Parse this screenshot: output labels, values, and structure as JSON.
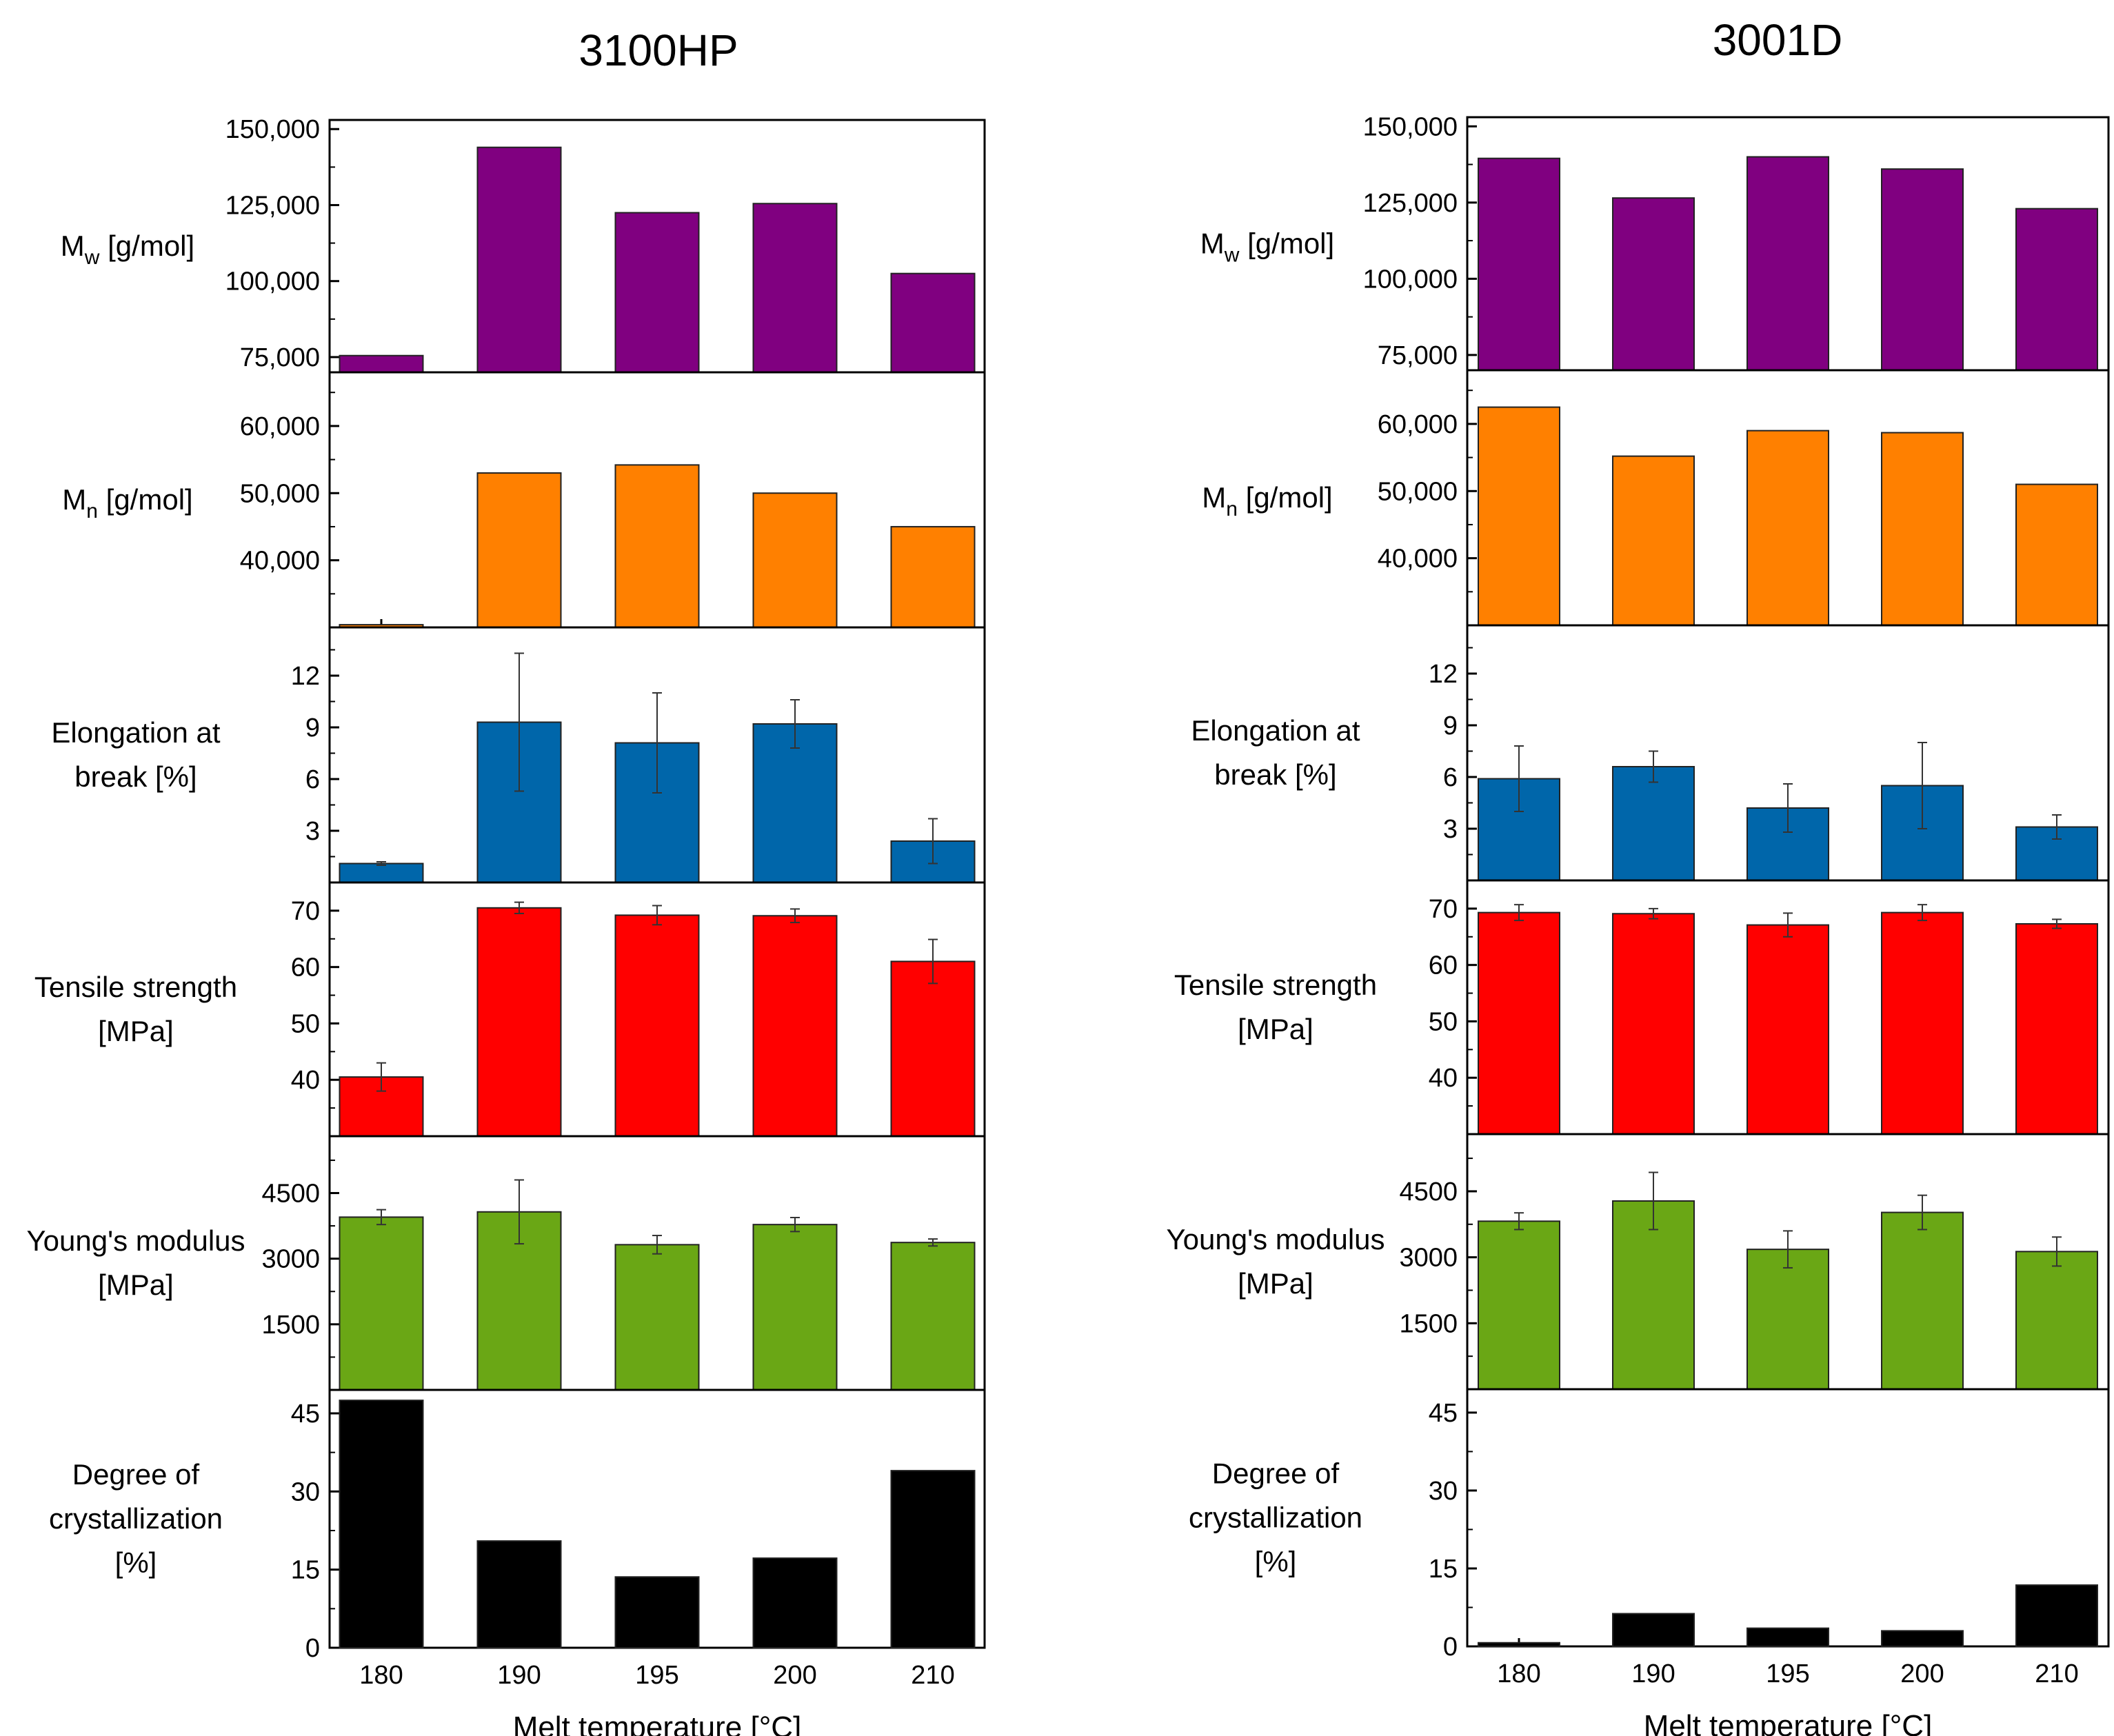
{
  "figure": {
    "xlabel": "Melt temperature [°C]",
    "colors": {
      "mw": "#800080",
      "mn": "#FF8000",
      "elongation": "#0066AA",
      "tensile": "#FF0000",
      "youngs": "#6AA715",
      "crystallization": "#000000"
    }
  },
  "chart_data": [
    {
      "type": "bar",
      "title": "3100HP",
      "xlabel": "Melt temperature [°C]",
      "categories": [
        "180",
        "190",
        "195",
        "200",
        "210"
      ],
      "panels": [
        {
          "key": "mw",
          "ylabel": "M_w [g/mol]",
          "ylim": [
            70000,
            153000
          ],
          "ticks": [
            75000,
            100000,
            125000,
            150000
          ],
          "tick_labels": [
            "75,000",
            "100,000",
            "125,000",
            "150,000"
          ],
          "values": [
            75500,
            144000,
            122500,
            125500,
            102500
          ]
        },
        {
          "key": "mn",
          "ylabel": "M_n [g/mol]",
          "ylim": [
            30000,
            68000
          ],
          "ticks": [
            40000,
            50000,
            60000
          ],
          "tick_labels": [
            "40,000",
            "50,000",
            "60,000"
          ],
          "values": [
            30400,
            53000,
            54200,
            50000,
            45000
          ]
        },
        {
          "key": "elongation",
          "ylabel": "Elongation at break [%]",
          "ylim": [
            0,
            14.8
          ],
          "ticks": [
            3,
            6,
            9,
            12
          ],
          "tick_labels": [
            "3",
            "6",
            "9",
            "12"
          ],
          "values": [
            1.1,
            9.3,
            8.1,
            9.2,
            2.4
          ],
          "errors": [
            0.1,
            4.0,
            2.9,
            1.4,
            1.3
          ]
        },
        {
          "key": "tensile",
          "ylabel": "Tensile strength [MPa]",
          "ylim": [
            30,
            75
          ],
          "ticks": [
            40,
            50,
            60,
            70
          ],
          "tick_labels": [
            "40",
            "50",
            "60",
            "70"
          ],
          "values": [
            40.5,
            70.5,
            69.2,
            69.1,
            61.0
          ],
          "errors": [
            2.5,
            1.0,
            1.7,
            1.2,
            3.9
          ]
        },
        {
          "key": "youngs",
          "ylabel": "Young's modulus [MPa]",
          "ylim": [
            0,
            5800
          ],
          "ticks": [
            1500,
            3000,
            4500
          ],
          "tick_labels": [
            "1500",
            "3000",
            "4500"
          ],
          "values": [
            3950,
            4070,
            3320,
            3780,
            3370
          ],
          "errors": [
            170,
            730,
            210,
            160,
            80
          ]
        },
        {
          "key": "crystallization",
          "ylabel": "Degree of crystallization [%]",
          "ylim": [
            0,
            49.5
          ],
          "ticks": [
            0,
            15,
            30,
            45
          ],
          "tick_labels": [
            "0",
            "15",
            "30",
            "45"
          ],
          "values": [
            47.5,
            20.5,
            13.6,
            17.2,
            34.0
          ]
        }
      ]
    },
    {
      "type": "bar",
      "title": "3001D",
      "xlabel": "Melt temperature [°C]",
      "categories": [
        "180",
        "190",
        "195",
        "200",
        "210"
      ],
      "panels": [
        {
          "key": "mw",
          "ylabel": "M_w [g/mol]",
          "ylim": [
            70000,
            153000
          ],
          "ticks": [
            75000,
            100000,
            125000,
            150000
          ],
          "tick_labels": [
            "75,000",
            "100,000",
            "125,000",
            "150,000"
          ],
          "values": [
            139500,
            126500,
            140000,
            136000,
            123000
          ]
        },
        {
          "key": "mn",
          "ylabel": "M_n [g/mol]",
          "ylim": [
            30000,
            68000
          ],
          "ticks": [
            40000,
            50000,
            60000
          ],
          "tick_labels": [
            "40,000",
            "50,000",
            "60,000"
          ],
          "values": [
            62500,
            55200,
            59000,
            58700,
            51000
          ]
        },
        {
          "key": "elongation",
          "ylabel": "Elongation at break [%]",
          "ylim": [
            0,
            14.8
          ],
          "ticks": [
            3,
            6,
            9,
            12
          ],
          "tick_labels": [
            "3",
            "6",
            "9",
            "12"
          ],
          "values": [
            5.9,
            6.6,
            4.2,
            5.5,
            3.1
          ],
          "errors": [
            1.9,
            0.9,
            1.4,
            2.5,
            0.7
          ]
        },
        {
          "key": "tensile",
          "ylabel": "Tensile strength [MPa]",
          "ylim": [
            30,
            75
          ],
          "ticks": [
            40,
            50,
            60,
            70
          ],
          "tick_labels": [
            "40",
            "50",
            "60",
            "70"
          ],
          "values": [
            69.3,
            69.1,
            67.1,
            69.3,
            67.3
          ],
          "errors": [
            1.4,
            0.9,
            2.1,
            1.4,
            0.8
          ]
        },
        {
          "key": "youngs",
          "ylabel": "Young's modulus [MPa]",
          "ylim": [
            0,
            5800
          ],
          "ticks": [
            1500,
            3000,
            4500
          ],
          "tick_labels": [
            "1500",
            "3000",
            "4500"
          ],
          "values": [
            3820,
            4280,
            3180,
            4020,
            3130
          ],
          "errors": [
            190,
            650,
            420,
            390,
            330
          ]
        },
        {
          "key": "crystallization",
          "ylabel": "Degree of crystallization [%]",
          "ylim": [
            0,
            49.5
          ],
          "ticks": [
            0,
            15,
            30,
            45
          ],
          "tick_labels": [
            "0",
            "15",
            "30",
            "45"
          ],
          "values": [
            0.7,
            6.3,
            3.5,
            3.0,
            11.8
          ]
        }
      ]
    }
  ]
}
